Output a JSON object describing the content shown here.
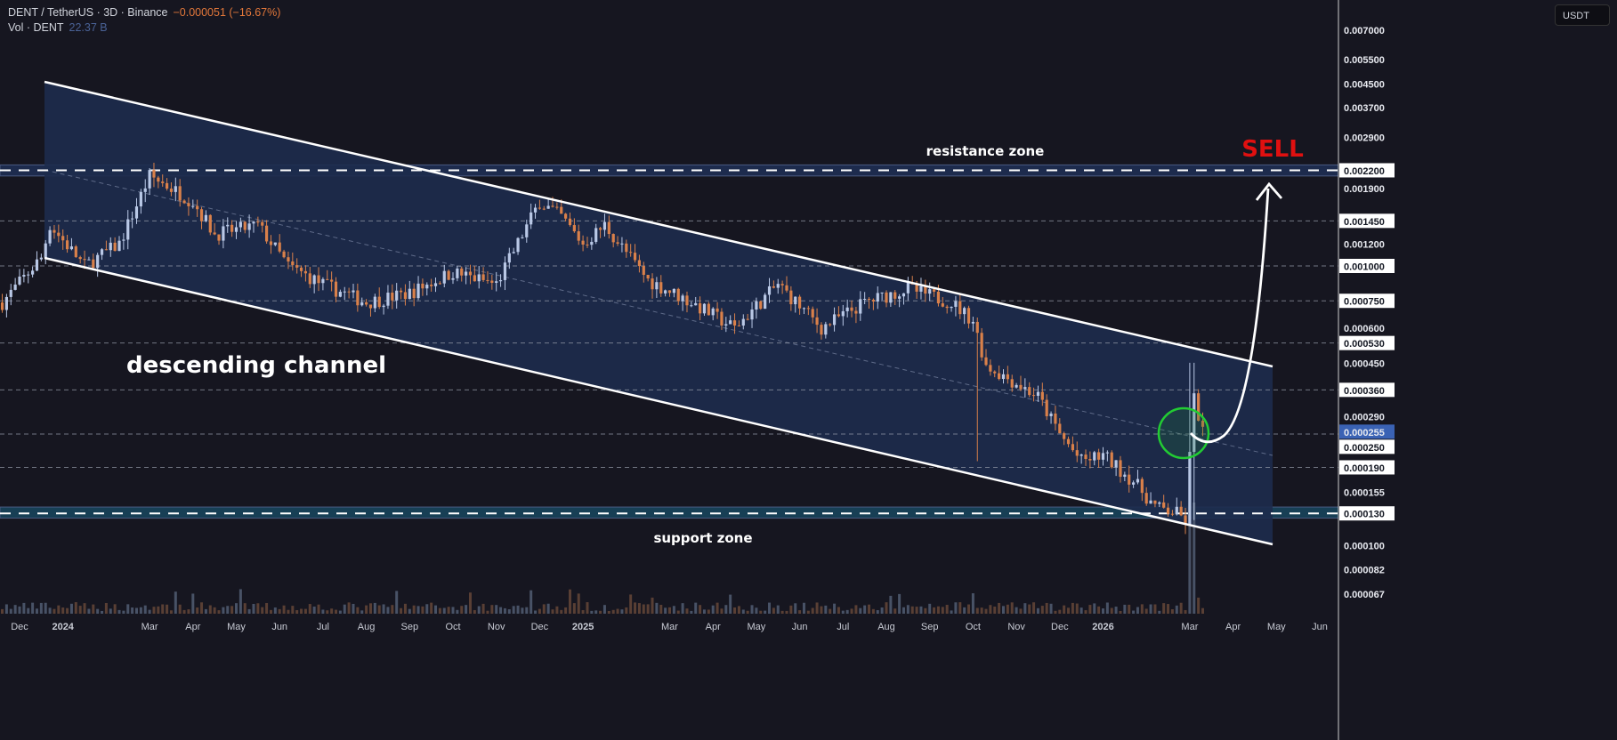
{
  "header": {
    "symbol": "DENT / TetherUS · 3D · Binance",
    "change": "−0.000051 (−16.67%)",
    "volume_label": "Vol · DENT",
    "volume_value": "22.37 B",
    "currency_button": "USDT"
  },
  "annotations": {
    "channel_label": "descending channel",
    "resistance_label": "resistance zone",
    "support_label": "support zone",
    "signal": "SELL"
  },
  "colors": {
    "background": "#161620",
    "up": "#b9c8e6",
    "down": "#d9804a",
    "channel_fill": "#1d2b4d",
    "signal": "#e01010",
    "circle": "#22cc33",
    "current_price": "#3a62b4"
  },
  "chart_data": {
    "type": "candlestick",
    "title": "DENT / TetherUS · 3D · Binance",
    "scale": "log",
    "ylim": [
      5.8e-05,
      0.0075
    ],
    "x_tick_labels": [
      "Dec",
      "2024",
      "Mar",
      "Apr",
      "May",
      "Jun",
      "Jul",
      "Aug",
      "Sep",
      "Oct",
      "Nov",
      "Dec",
      "2025",
      "Mar",
      "Apr",
      "May",
      "Jun",
      "Jul",
      "Aug",
      "Sep",
      "Oct",
      "Nov",
      "Dec",
      "2026",
      "Mar",
      "Apr",
      "May",
      "Jun"
    ],
    "x_tick_months": [
      0,
      1,
      3,
      4,
      5,
      6,
      7,
      8,
      9,
      10,
      11,
      12,
      13,
      15,
      16,
      17,
      18,
      19,
      20,
      21,
      22,
      23,
      24,
      25,
      27,
      28,
      29,
      30
    ],
    "y_tick_labels": [
      {
        "value": 0.007,
        "label": "0.007000",
        "boxed": false
      },
      {
        "value": 0.0055,
        "label": "0.005500",
        "boxed": false
      },
      {
        "value": 0.0045,
        "label": "0.004500",
        "boxed": false
      },
      {
        "value": 0.0037,
        "label": "0.003700",
        "boxed": false
      },
      {
        "value": 0.0029,
        "label": "0.002900",
        "boxed": false
      },
      {
        "value": 0.0022,
        "label": "0.002200",
        "boxed": true
      },
      {
        "value": 0.0019,
        "label": "0.001900",
        "boxed": false
      },
      {
        "value": 0.00145,
        "label": "0.001450",
        "boxed": true
      },
      {
        "value": 0.0012,
        "label": "0.001200",
        "boxed": false
      },
      {
        "value": 0.001,
        "label": "0.001000",
        "boxed": true
      },
      {
        "value": 0.00075,
        "label": "0.000750",
        "boxed": true
      },
      {
        "value": 0.0006,
        "label": "0.000600",
        "boxed": false
      },
      {
        "value": 0.00053,
        "label": "0.000530",
        "boxed": true
      },
      {
        "value": 0.00045,
        "label": "0.000450",
        "boxed": false
      },
      {
        "value": 0.00036,
        "label": "0.000360",
        "boxed": true
      },
      {
        "value": 0.00029,
        "label": "0.000290",
        "boxed": false
      },
      {
        "value": 0.000255,
        "label": "0.000255",
        "boxed": "current"
      },
      {
        "value": 0.00025,
        "label": "0.000250",
        "boxed": true
      },
      {
        "value": 0.00019,
        "label": "0.000190",
        "boxed": true
      },
      {
        "value": 0.000155,
        "label": "0.000155",
        "boxed": false
      },
      {
        "value": 0.00013,
        "label": "0.000130",
        "boxed": true
      },
      {
        "value": 0.0001,
        "label": "0.000100",
        "boxed": false
      },
      {
        "value": 8.2e-05,
        "label": "0.000082",
        "boxed": false
      },
      {
        "value": 6.7e-05,
        "label": "0.000067",
        "boxed": false
      }
    ],
    "horizontal_levels": [
      0.0022,
      0.00145,
      0.001,
      0.00075,
      0.00053,
      0.00036,
      0.00025,
      0.00019,
      0.00013
    ],
    "resistance_zone": [
      0.0021,
      0.0023
    ],
    "support_zone": [
      0.000125,
      0.000137
    ],
    "price_path_months": [
      -0.4,
      0.5,
      0.7,
      1.5,
      2.3,
      3,
      3.5,
      4,
      4.5,
      5.5,
      6.2,
      7,
      8,
      9,
      10,
      11,
      12,
      12.5,
      13,
      13.5,
      14.5,
      15.5,
      16.5,
      17.5,
      18.5,
      19.5,
      20.5,
      21.5,
      22,
      22.3,
      23,
      23.5,
      24,
      24.5,
      25,
      25.7,
      26.2,
      26.7,
      26.95,
      27.05,
      27.3
    ],
    "price_path_values": [
      0.00074,
      0.00107,
      0.0014,
      0.001,
      0.0012,
      0.0021,
      0.0019,
      0.0017,
      0.0013,
      0.0014,
      0.001,
      0.00086,
      0.00074,
      0.0008,
      0.00095,
      0.00086,
      0.0017,
      0.0015,
      0.0012,
      0.0014,
      0.00089,
      0.00074,
      0.0006,
      0.00086,
      0.0006,
      0.00074,
      0.00083,
      0.00074,
      0.00064,
      0.00044,
      0.00038,
      0.00034,
      0.00025,
      0.0002,
      0.00021,
      0.00017,
      0.000137,
      0.00013,
      0.00012,
      0.00036,
      0.000255
    ],
    "last_price": 0.000255
  }
}
